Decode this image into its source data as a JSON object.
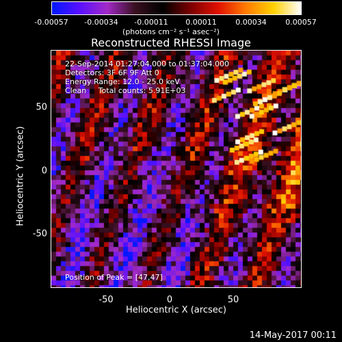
{
  "colorbar": {
    "ticks": [
      "-0.00057",
      "-0.00034",
      "-0.00011",
      "0.00011",
      "0.00034",
      "0.00057"
    ],
    "units": "(photons cm⁻² s⁻¹ asec⁻²)",
    "colors": [
      "#0018ff",
      "#5a10ff",
      "#a22ac8",
      "#3a1020",
      "#000000",
      "#7a0000",
      "#e01000",
      "#ff7a00",
      "#ffd000",
      "#ffffff"
    ]
  },
  "title": "Reconstructed RHESSI Image",
  "annotations": {
    "time_range": "22-Sep-2014 01:27:04.000 to 01:37:04.000",
    "detectors": "Detectors: 3F 6F 9F Att 0",
    "energy": "Energy Range: 12.0 - 25.0 keV",
    "clean": "Clean     Total counts: 5.91E+03",
    "peak": "Position of Peak = [47,47]"
  },
  "axes": {
    "xlabel": "Heliocentric X (arcsec)",
    "ylabel": "Heliocentric Y (arcsec)",
    "xticks": [
      "-50",
      "0",
      "50"
    ],
    "yticks": [
      "50",
      "0",
      "-50"
    ],
    "xlim": [
      -98,
      98
    ],
    "ylim": [
      -93,
      93
    ]
  },
  "timestamp": "14-May-2017 00:11"
}
